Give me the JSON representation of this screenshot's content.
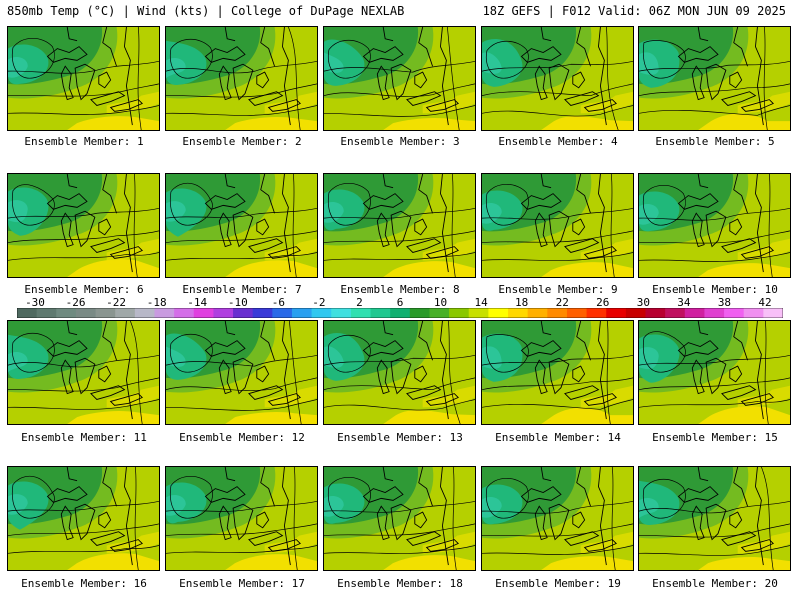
{
  "header": {
    "left": "850mb Temp (°C) | Wind (kts) | College of DuPage NEXLAB",
    "right": "18Z GEFS | F012 Valid: 06Z MON JUN 09 2025"
  },
  "label_prefix": "Ensemble Member: ",
  "members": [
    "Ensemble Member: 1",
    "Ensemble Member: 2",
    "Ensemble Member: 3",
    "Ensemble Member: 4",
    "Ensemble Member: 5",
    "Ensemble Member: 6",
    "Ensemble Member: 7",
    "Ensemble Member: 8",
    "Ensemble Member: 9",
    "Ensemble Member: 10",
    "Ensemble Member: 11",
    "Ensemble Member: 12",
    "Ensemble Member: 13",
    "Ensemble Member: 14",
    "Ensemble Member: 15",
    "Ensemble Member: 16",
    "Ensemble Member: 17",
    "Ensemble Member: 18",
    "Ensemble Member: 19",
    "Ensemble Member: 20"
  ],
  "colorbar": {
    "tick_labels": [
      "-30",
      "-26",
      "-22",
      "-18",
      "-14",
      "-10",
      "-6",
      "-2",
      "2",
      "6",
      "10",
      "14",
      "18",
      "22",
      "26",
      "30",
      "34",
      "38",
      "42"
    ],
    "colors": [
      "#4f6a60",
      "#5f7a70",
      "#6f8a80",
      "#7a8a85",
      "#8a9590",
      "#a0a8a8",
      "#b8b8c8",
      "#c99be0",
      "#d46ee8",
      "#e040e0",
      "#b040e0",
      "#6a30d0",
      "#3a3ad8",
      "#2a6ae8",
      "#2aa0f0",
      "#30c8f0",
      "#40e0e0",
      "#30e0b0",
      "#20c890",
      "#10b070",
      "#2a9a2a",
      "#48b028",
      "#8ac800",
      "#c8e000",
      "#ffff00",
      "#ffd800",
      "#ffb000",
      "#ff8a00",
      "#ff6000",
      "#ff3000",
      "#e80000",
      "#c80000",
      "#b80030",
      "#c01060",
      "#d020a0",
      "#e040d0",
      "#f060f0",
      "#f090f0",
      "#f8c0f8"
    ]
  }
}
